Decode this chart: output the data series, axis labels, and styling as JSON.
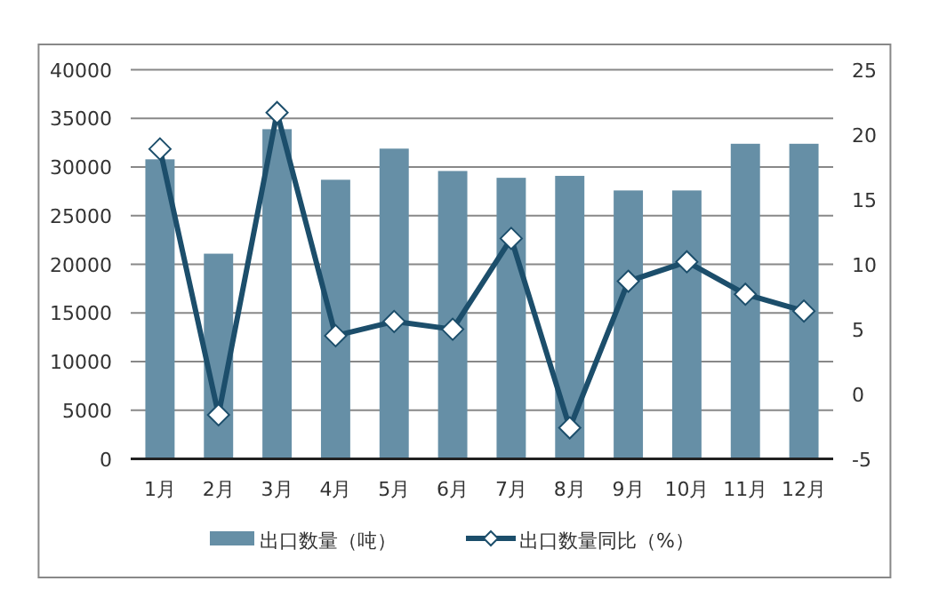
{
  "chart_data": {
    "type": "bar",
    "categories": [
      "1月",
      "2月",
      "3月",
      "4月",
      "5月",
      "6月",
      "7月",
      "8月",
      "9月",
      "10月",
      "11月",
      "12月"
    ],
    "series": [
      {
        "name": "出口数量（吨）",
        "color": "#668fa6",
        "values": [
          30800,
          21100,
          33900,
          28700,
          31900,
          29600,
          28900,
          29100,
          27600,
          27600,
          32400,
          32400
        ]
      },
      {
        "name": "出口数量同比（%）",
        "type": "line",
        "axis": "y2",
        "color": "#1c4e6b",
        "marker": "diamond",
        "values": [
          18.9,
          -1.6,
          21.7,
          4.5,
          5.6,
          5.0,
          12.0,
          -2.6,
          8.7,
          10.2,
          7.7,
          6.4
        ]
      }
    ],
    "ylim": [
      0,
      40000
    ],
    "yticks": [
      0,
      5000,
      10000,
      15000,
      20000,
      25000,
      30000,
      35000,
      40000
    ],
    "y2lim": [
      -5,
      25
    ],
    "y2ticks": [
      -5,
      0,
      5,
      10,
      15,
      20,
      25
    ],
    "grid": "y",
    "legend": "bottom"
  }
}
